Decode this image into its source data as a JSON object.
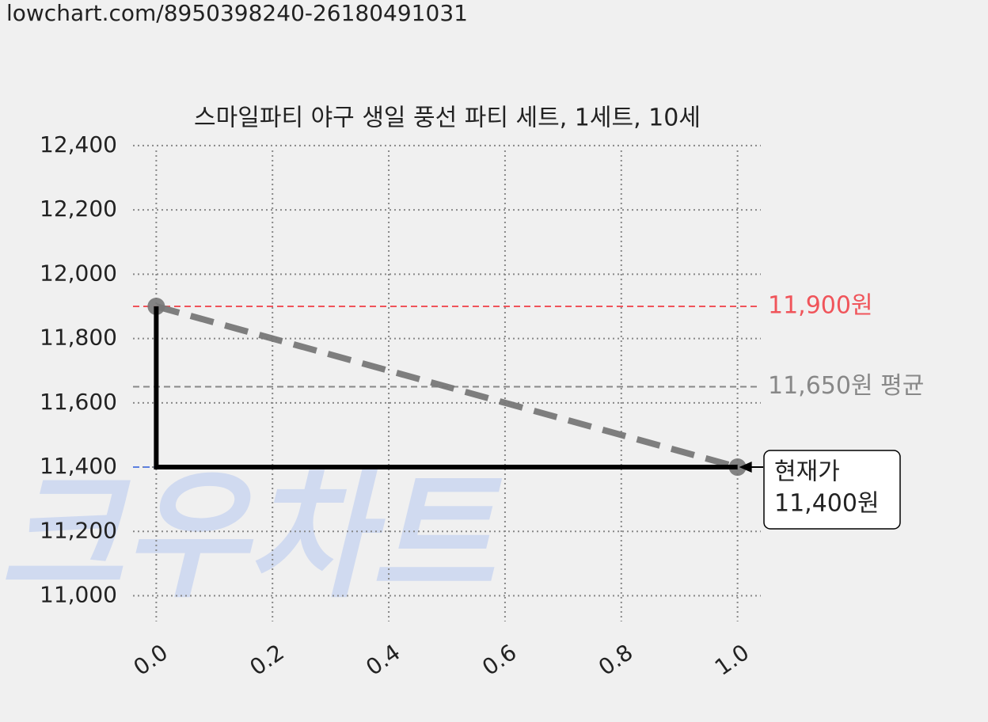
{
  "url": "lowchart.com/8950398240-26180491031",
  "chart_data": {
    "type": "line",
    "title": "스마일파티 야구 생일 풍선 파티 세트, 1세트, 10세",
    "watermark": "크우차트",
    "xlim": [
      -0.04,
      1.04
    ],
    "ylim": [
      10920,
      12385
    ],
    "xticks": [
      {
        "value": 0,
        "label": "0.0"
      },
      {
        "value": 0.2,
        "label": "0.2"
      },
      {
        "value": 0.4,
        "label": "0.4"
      },
      {
        "value": 0.6,
        "label": "0.6"
      },
      {
        "value": 0.8,
        "label": "0.8"
      },
      {
        "value": 1,
        "label": "1.0"
      }
    ],
    "yticks": [
      {
        "value": 11000,
        "label": "11,000"
      },
      {
        "value": 11200,
        "label": "11,200"
      },
      {
        "value": 11400,
        "label": "11,400"
      },
      {
        "value": 11600,
        "label": "11,600"
      },
      {
        "value": 11800,
        "label": "11,800"
      },
      {
        "value": 12000,
        "label": "12,000"
      },
      {
        "value": 12200,
        "label": "12,200"
      },
      {
        "value": 12400,
        "label": "12,400"
      }
    ],
    "grid": true,
    "series": [
      {
        "color": "#777777",
        "dash": "dashed",
        "markers": true,
        "x": [
          0,
          1
        ],
        "values": [
          11900,
          11400
        ]
      },
      {
        "color": "#000000",
        "dash": "solid",
        "markers": false,
        "x": [
          0,
          0,
          1
        ],
        "values": [
          11900,
          11400,
          11400
        ]
      }
    ],
    "hlines": [
      {
        "value": 11900,
        "label": "11,900원",
        "color": "#f0545a"
      },
      {
        "value": 11650,
        "label": "11,650원 평균",
        "color": "#888888"
      },
      {
        "value": 11400,
        "color": "#5b7fe0"
      }
    ],
    "annotation": {
      "lines": [
        "현재가",
        "11,400원"
      ]
    }
  }
}
